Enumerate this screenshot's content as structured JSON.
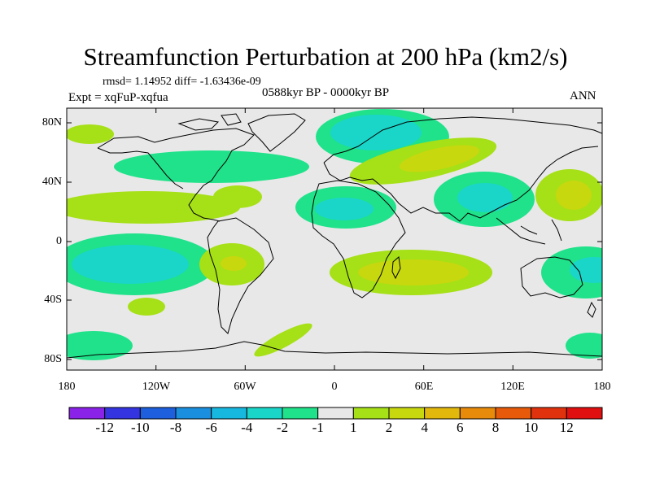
{
  "title": "Streamfunction Perturbation at 200 hPa (km2/s)",
  "stats": "rmsd= 1.14952 diff= -1.63436e-09",
  "experiment": "Expt = xqFuP-xqfua",
  "period": "0588kyr BP - 0000kyr BP",
  "season": "ANN",
  "y_ticks": [
    "80N",
    "40N",
    "0",
    "40S",
    "80S"
  ],
  "x_ticks": [
    "180",
    "120W",
    "60W",
    "0",
    "60E",
    "120E",
    "180"
  ],
  "colorbar": {
    "labels": [
      "-12",
      "-10",
      "-8",
      "-6",
      "-4",
      "-2",
      "-1",
      "1",
      "2",
      "4",
      "6",
      "8",
      "10",
      "12"
    ],
    "colors": [
      "#8a22e8",
      "#3434e0",
      "#1d5fdc",
      "#1a8fe0",
      "#17b8e0",
      "#19d6c8",
      "#20e28a",
      "#e8e8e8",
      "#a6e016",
      "#c8d80e",
      "#e2b80c",
      "#e88a0a",
      "#e65a0a",
      "#e0320c",
      "#e01010"
    ]
  },
  "colors": {
    "ocean": "#e8e8e8",
    "coast": "#000000",
    "neg1": "#20e28a",
    "neg2": "#19d6c8",
    "neg4": "#17b8e0",
    "pos1": "#a6e016",
    "pos2": "#c8d80e",
    "pos4": "#e2b80c"
  }
}
